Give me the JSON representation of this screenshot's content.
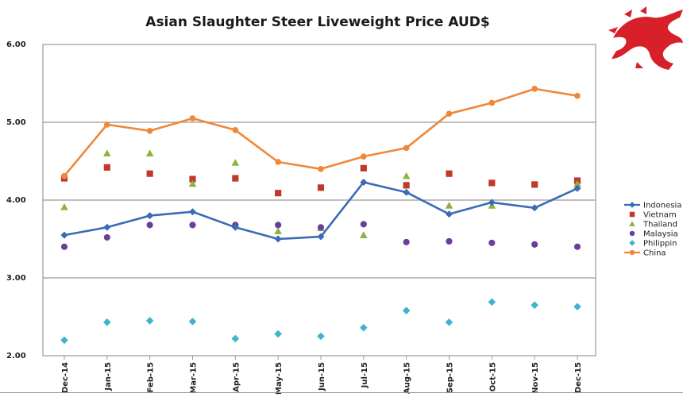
{
  "chart_data": {
    "type": "line",
    "title": "Asian Slaughter Steer Liveweight Price AUD$",
    "xlabel": "",
    "ylabel": "",
    "ylim": [
      2.0,
      6.0
    ],
    "yticks": [
      "6.00",
      "5.00",
      "4.00",
      "3.00",
      "2.00"
    ],
    "grid": true,
    "legend": "right",
    "categories": [
      "Dec-14",
      "Jan-15",
      "Feb-15",
      "Mar-15",
      "Apr-15",
      "May-15",
      "Jun-15",
      "Jul-15",
      "Aug-15",
      "Sep-15",
      "Oct-15",
      "Nov-15",
      "Dec-15"
    ],
    "series": [
      {
        "name": "Indonesia",
        "legend_text": "Indonesia",
        "style": "line",
        "marker": "diamond",
        "color": "#3a6bb5",
        "values": [
          3.55,
          3.65,
          3.8,
          3.85,
          3.65,
          3.5,
          3.53,
          4.23,
          4.1,
          3.82,
          3.97,
          3.9,
          4.15
        ]
      },
      {
        "name": "Vietnam",
        "legend_text": "Vietnam",
        "style": "markers",
        "marker": "square",
        "color": "#c0392b",
        "values": [
          4.28,
          4.42,
          4.34,
          4.27,
          4.28,
          4.09,
          4.16,
          4.41,
          4.19,
          4.34,
          4.22,
          4.2,
          4.25
        ]
      },
      {
        "name": "Thailand",
        "legend_text": "Thailand",
        "style": "markers",
        "marker": "triangle",
        "color": "#8db33f",
        "values": [
          3.91,
          4.6,
          4.6,
          4.21,
          4.48,
          3.6,
          3.64,
          3.55,
          4.31,
          3.93,
          3.93,
          null,
          4.21
        ]
      },
      {
        "name": "Malaysia",
        "legend_text": "Malaysia",
        "style": "markers",
        "marker": "circle",
        "color": "#6a3f9b",
        "values": [
          3.4,
          3.52,
          3.68,
          3.68,
          3.68,
          3.68,
          3.65,
          3.69,
          3.46,
          3.47,
          3.45,
          3.43,
          3.4
        ]
      },
      {
        "name": "Philippines",
        "legend_text": "Philippin",
        "style": "markers",
        "marker": "diamond",
        "color": "#3fb4cc",
        "values": [
          2.2,
          2.43,
          2.45,
          2.44,
          2.22,
          2.28,
          2.25,
          2.36,
          2.58,
          2.43,
          2.69,
          2.65,
          2.63
        ]
      },
      {
        "name": "China",
        "legend_text": "China",
        "style": "line",
        "marker": "circle",
        "color": "#f0883a",
        "values": [
          4.31,
          4.97,
          4.89,
          5.05,
          4.9,
          4.49,
          4.4,
          4.56,
          4.67,
          5.11,
          5.25,
          5.43,
          5.34
        ]
      }
    ]
  },
  "colors": {
    "grid": "#9a9a9a",
    "logo": "#d7202a"
  },
  "logo": {
    "icon": "red-dragon-icon"
  }
}
